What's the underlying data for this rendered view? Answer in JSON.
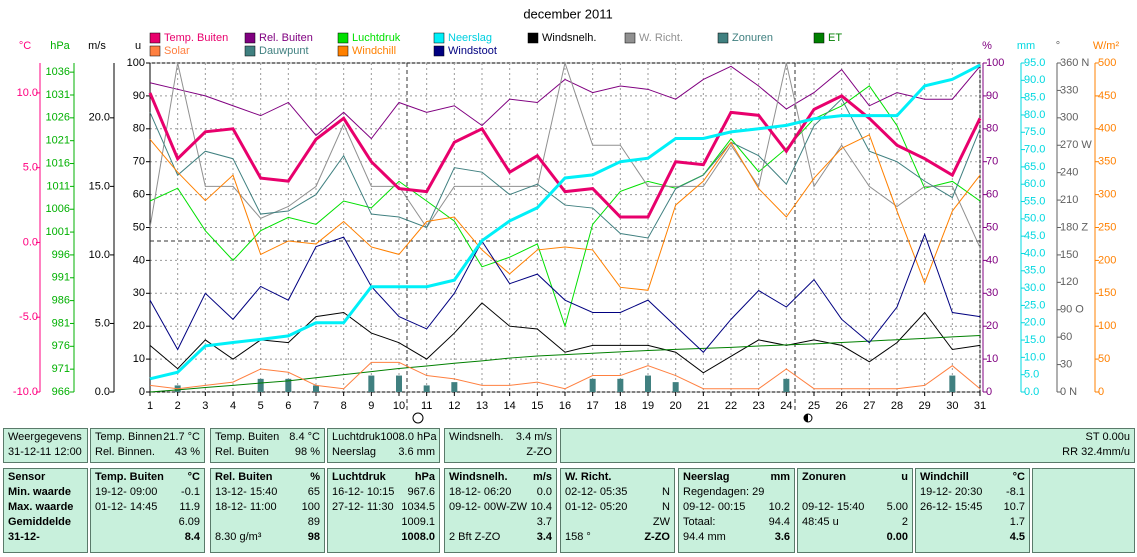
{
  "chart_data": {
    "type": "line",
    "title": "december 2011",
    "x": [
      1,
      2,
      3,
      4,
      5,
      6,
      7,
      8,
      9,
      10,
      11,
      12,
      13,
      14,
      15,
      16,
      17,
      18,
      19,
      20,
      21,
      22,
      23,
      24,
      25,
      26,
      27,
      28,
      29,
      30,
      31
    ],
    "xlim": [
      1,
      31
    ],
    "axes": [
      {
        "title": "°C",
        "color": "#ff0080",
        "lim": [
          -10,
          12
        ],
        "ticks": [
          {
            "value": -10,
            "label": "-10.0"
          },
          {
            "value": -5,
            "label": "-5.0"
          },
          {
            "value": 0,
            "label": "0.0"
          },
          {
            "value": 5,
            "label": "5.0"
          },
          {
            "value": 10,
            "label": "10.0"
          }
        ]
      },
      {
        "title": "hPa",
        "color": "#00b000",
        "lim": [
          966,
          1038
        ],
        "ticks": [
          966,
          971,
          976,
          981,
          986,
          991,
          996,
          1001,
          1006,
          1011,
          1016,
          1021,
          1026,
          1031,
          1036
        ]
      },
      {
        "title": "m/s",
        "color": "#000000",
        "lim": [
          0,
          24
        ],
        "ticks": [
          {
            "value": 0,
            "label": "0.0"
          },
          {
            "value": 5,
            "label": "5.0"
          },
          {
            "value": 10,
            "label": "10.0"
          },
          {
            "value": 15,
            "label": "15.0"
          },
          {
            "value": 20,
            "label": "20.0"
          }
        ]
      },
      {
        "title": "u",
        "color": "#000000",
        "lim": [
          0,
          100
        ],
        "ticks": [
          0,
          10,
          20,
          30,
          40,
          50,
          60,
          70,
          80,
          90,
          100
        ]
      },
      {
        "title": "%",
        "color": "#800080",
        "lim": [
          0,
          100
        ],
        "ticks": [
          0,
          10,
          20,
          30,
          40,
          50,
          60,
          70,
          80,
          90,
          100
        ]
      },
      {
        "title": "mm",
        "color": "#00d8e0",
        "lim": [
          0,
          95
        ],
        "ticks": [
          {
            "value": 0,
            "label": "0.0"
          },
          {
            "value": 5,
            "label": "5.0"
          },
          {
            "value": 10,
            "label": "10.0"
          },
          {
            "value": 15,
            "label": "15.0"
          },
          {
            "value": 20,
            "label": "20.0"
          },
          {
            "value": 25,
            "label": "25.0"
          },
          {
            "value": 30,
            "label": "30.0"
          },
          {
            "value": 35,
            "label": "35.0"
          },
          {
            "value": 40,
            "label": "40.0"
          },
          {
            "value": 45,
            "label": "45.0"
          },
          {
            "value": 50,
            "label": "50.0"
          },
          {
            "value": 55,
            "label": "55.0"
          },
          {
            "value": 60,
            "label": "60.0"
          },
          {
            "value": 65,
            "label": "65.0"
          },
          {
            "value": 70,
            "label": "70.0"
          },
          {
            "value": 75,
            "label": "75.0"
          },
          {
            "value": 80,
            "label": "80.0"
          },
          {
            "value": 85,
            "label": "85.0"
          },
          {
            "value": 90,
            "label": "90.0"
          },
          {
            "value": 95,
            "label": "95.0"
          }
        ]
      },
      {
        "title": "°",
        "color": "#606060",
        "lim": [
          0,
          360
        ],
        "ticks": [
          {
            "value": 0,
            "label": "0 N"
          },
          30,
          60,
          {
            "value": 90,
            "label": "90 O"
          },
          120,
          150,
          {
            "value": 180,
            "label": "180 Z"
          },
          210,
          240,
          {
            "value": 270,
            "label": "270 W"
          },
          300,
          330,
          {
            "value": 360,
            "label": "360 N"
          }
        ]
      },
      {
        "title": "W/m²",
        "color": "#ff8000",
        "lim": [
          0,
          500
        ],
        "ticks": [
          0,
          50,
          100,
          150,
          200,
          250,
          300,
          350,
          400,
          450,
          500
        ]
      }
    ],
    "series": [
      {
        "name": "Temp. Buiten",
        "color": "#e8006c",
        "axis": 0,
        "width": 3,
        "values": [
          10.0,
          5.6,
          7.4,
          7.6,
          4.3,
          4.1,
          6.9,
          8.3,
          5.4,
          3.6,
          3.4,
          6.7,
          7.6,
          4.7,
          5.8,
          3.4,
          3.6,
          1.7,
          1.7,
          5.4,
          5.2,
          8.7,
          8.5,
          6.1,
          8.9,
          9.8,
          8.3,
          6.5,
          5.6,
          4.5,
          8.3
        ]
      },
      {
        "name": "Rel. Buiten",
        "color": "#800080",
        "axis": 4,
        "values": [
          94,
          92,
          90,
          87,
          84,
          88,
          78,
          85,
          77,
          88,
          85,
          87,
          81,
          89,
          88,
          95,
          91,
          93,
          92,
          89,
          95,
          99,
          93,
          86,
          91,
          98,
          87,
          91,
          89,
          89,
          99
        ]
      },
      {
        "name": "Luchtdruk",
        "color": "#00e000",
        "axis": 1,
        "values": [
          1007.8,
          1010.6,
          1001.3,
          994.8,
          1001.3,
          1004.2,
          1002.7,
          1007.8,
          1006.3,
          1012.1,
          1007.8,
          1003.4,
          993.4,
          995.5,
          998.4,
          980.4,
          1002.7,
          1009.9,
          1012.1,
          1010.6,
          1013.5,
          1021.4,
          1014.2,
          1019.3,
          1025.8,
          1028.6,
          1033.0,
          1024.3,
          1010.6,
          1012.1,
          1007.8
        ]
      },
      {
        "name": "Neerslag",
        "color": "#00f0f8",
        "axis": 5,
        "width": 3,
        "values": [
          3.8,
          5.7,
          13.3,
          14.3,
          15.2,
          16.2,
          20.0,
          20.0,
          30.4,
          30.4,
          30.4,
          32.3,
          43.7,
          49.4,
          53.2,
          61.8,
          62.7,
          66.5,
          67.5,
          73.2,
          73.2,
          75.1,
          76.0,
          77.0,
          78.9,
          79.8,
          79.8,
          79.8,
          88.4,
          90.3,
          94.4
        ]
      },
      {
        "name": "Windsnelh.",
        "color": "#000000",
        "axis": 2,
        "values": [
          3.4,
          1.7,
          3.8,
          2.4,
          3.8,
          3.6,
          5.5,
          5.8,
          4.3,
          3.6,
          2.4,
          4.3,
          6.5,
          4.8,
          4.6,
          2.9,
          3.4,
          3.4,
          3.4,
          2.9,
          1.4,
          2.6,
          3.8,
          3.4,
          3.8,
          3.4,
          2.2,
          3.6,
          5.8,
          3.1,
          3.4
        ]
      },
      {
        "name": "W. Richt.",
        "color": "#909090",
        "axis": 6,
        "values": [
          180,
          360,
          225,
          225,
          190,
          203,
          225,
          293,
          225,
          225,
          180,
          225,
          225,
          225,
          225,
          360,
          270,
          270,
          225,
          225,
          225,
          270,
          225,
          360,
          225,
          270,
          225,
          203,
          225,
          225,
          158
        ]
      },
      {
        "name": "Zonuren",
        "color": "#408080",
        "axis": 3,
        "type": "bar",
        "values": [
          0,
          2,
          0,
          0,
          4,
          4,
          2,
          0,
          5,
          5,
          2,
          3,
          0,
          0,
          0,
          0,
          4,
          4,
          5,
          3,
          0,
          0,
          0,
          4,
          0,
          0,
          0,
          0,
          0,
          5,
          0
        ]
      },
      {
        "name": "ET",
        "color": "#008000",
        "axis": 5,
        "values": [
          0,
          0.6,
          1.3,
          1.9,
          2.6,
          3.2,
          4.1,
          5.0,
          5.9,
          6.8,
          7.5,
          8.3,
          9.0,
          9.8,
          10.4,
          10.8,
          11.2,
          11.6,
          12.0,
          12.3,
          12.6,
          12.9,
          13.3,
          13.6,
          13.9,
          14.3,
          14.7,
          15.1,
          15.5,
          15.9,
          16.3
        ]
      },
      {
        "name": "Solar",
        "color": "#ff8040",
        "axis": 7,
        "values": [
          10,
          5,
          10,
          15,
          35,
          30,
          10,
          5,
          45,
          45,
          25,
          20,
          10,
          10,
          15,
          5,
          25,
          25,
          40,
          25,
          5,
          5,
          5,
          35,
          5,
          5,
          5,
          5,
          10,
          40,
          5
        ]
      },
      {
        "name": "Dauwpunt",
        "color": "#408080",
        "axis": 0,
        "values": [
          8.7,
          4.5,
          6.1,
          5.6,
          1.9,
          2.1,
          3.2,
          5.8,
          1.9,
          1.7,
          1.0,
          5.0,
          4.7,
          3.2,
          3.9,
          2.5,
          2.3,
          0.6,
          0.3,
          3.6,
          4.5,
          6.7,
          5.8,
          3.9,
          7.8,
          9.6,
          6.1,
          5.4,
          4.1,
          3.0,
          7.6
        ]
      },
      {
        "name": "Windchill",
        "color": "#ff8000",
        "axis": 0,
        "values": [
          6.9,
          4.7,
          2.8,
          4.5,
          -0.8,
          0.1,
          -0.1,
          1.4,
          -0.3,
          -0.8,
          1.4,
          1.7,
          -0.5,
          -2.1,
          -0.5,
          -0.3,
          -0.5,
          -3.0,
          -3.2,
          2.5,
          4.1,
          6.7,
          3.6,
          1.7,
          4.3,
          6.3,
          7.2,
          2.1,
          -2.7,
          2.1,
          4.5
        ]
      },
      {
        "name": "Windstoot",
        "color": "#000080",
        "axis": 2,
        "values": [
          6.7,
          3.1,
          7.2,
          5.3,
          7.7,
          6.7,
          10.6,
          11.3,
          7.7,
          5.5,
          4.6,
          7.2,
          11.0,
          7.9,
          8.6,
          6.7,
          5.8,
          5.8,
          6.7,
          4.8,
          2.9,
          5.3,
          7.4,
          6.2,
          8.2,
          5.3,
          3.6,
          6.2,
          11.5,
          5.8,
          5.5
        ]
      }
    ],
    "grid": true
  },
  "current": [
    [
      {
        "left": "Weergegevens"
      },
      {
        "left": "31-12-11 12:00"
      }
    ],
    [
      {
        "left": "Temp. Binnen",
        "right": "21.7 °C"
      },
      {
        "left": "Rel. Binnen.",
        "right": "43 %"
      }
    ],
    [
      {
        "left": "Temp. Buiten",
        "right": "8.4 °C"
      },
      {
        "left": "Rel. Buiten",
        "right": "98 %"
      }
    ],
    [
      {
        "left": "Luchtdruk",
        "right": "1008.0 hPa"
      },
      {
        "left": "Neerslag",
        "right": "3.6 mm"
      }
    ],
    [
      {
        "left": "Windsnelh.",
        "right": "3.4 m/s"
      },
      {
        "right": "Z-ZO"
      }
    ],
    [
      {
        "right": "ST 0.00u"
      },
      {
        "right": "RR 32.4mm/u"
      }
    ]
  ],
  "table": {
    "sensor": "Sensor",
    "rows": [
      "Min. waarde",
      "Max. waarde",
      "Gemiddelde",
      "31-12-"
    ],
    "columns": [
      {
        "name": "Temp. Buiten",
        "unit": "°C",
        "cells": [
          {
            "left": "19-12- 09:00",
            "right": "-0.1"
          },
          {
            "left": "01-12- 14:45",
            "right": "11.9"
          },
          {
            "right": "6.09"
          },
          {
            "right": "8.4"
          }
        ]
      },
      {
        "name": "Rel. Buiten",
        "unit": "%",
        "cells": [
          {
            "left": "13-12- 15:40",
            "right": "65"
          },
          {
            "left": "18-12- 11:00",
            "right": "100"
          },
          {
            "right": "89"
          },
          {
            "left": "8.30 g/m³",
            "right": "98"
          }
        ]
      },
      {
        "name": "Luchtdruk",
        "unit": "hPa",
        "cells": [
          {
            "left": "16-12- 10:15",
            "right": "967.6"
          },
          {
            "left": "27-12- 11:30",
            "right": "1034.5"
          },
          {
            "right": "1009.1"
          },
          {
            "right": "1008.0"
          }
        ]
      },
      {
        "name": "Windsnelh.",
        "unit": "m/s",
        "cells": [
          {
            "left": "18-12- 06:20",
            "right": "0.0"
          },
          {
            "left": "09-12- 00W-ZW",
            "right": "10.4"
          },
          {
            "right": "3.7"
          },
          {
            "left": "2 Bft Z-ZO",
            "right": "3.4"
          }
        ]
      },
      {
        "name": "W. Richt.",
        "unit": "",
        "cells": [
          {
            "left": "02-12- 05:35",
            "right": "N"
          },
          {
            "left": "01-12- 05:20",
            "right": "N"
          },
          {
            "right": "ZW"
          },
          {
            "left": "158 °",
            "right": "Z-ZO"
          }
        ]
      },
      {
        "name": "Neerslag",
        "unit": "mm",
        "cells": [
          {
            "left": "Regendagen: 29"
          },
          {
            "left": "09-12- 00:15",
            "right": "10.2"
          },
          {
            "left": "Totaal:",
            "right": "94.4"
          },
          {
            "left": "94.4 mm",
            "right": "3.6"
          }
        ]
      },
      {
        "name": "Zonuren",
        "unit": "u",
        "cells": [
          {},
          {
            "left": "09-12- 15:40",
            "right": "5.00"
          },
          {
            "left": "48:45 u",
            "right": "2"
          },
          {
            "right": "0.00"
          }
        ]
      },
      {
        "name": "Windchill",
        "unit": "°C",
        "cells": [
          {
            "left": "19-12- 20:30",
            "right": "-8.1"
          },
          {
            "left": "26-12- 15:45",
            "right": "10.7"
          },
          {
            "right": "1.7"
          },
          {
            "right": "4.5"
          }
        ]
      }
    ]
  }
}
